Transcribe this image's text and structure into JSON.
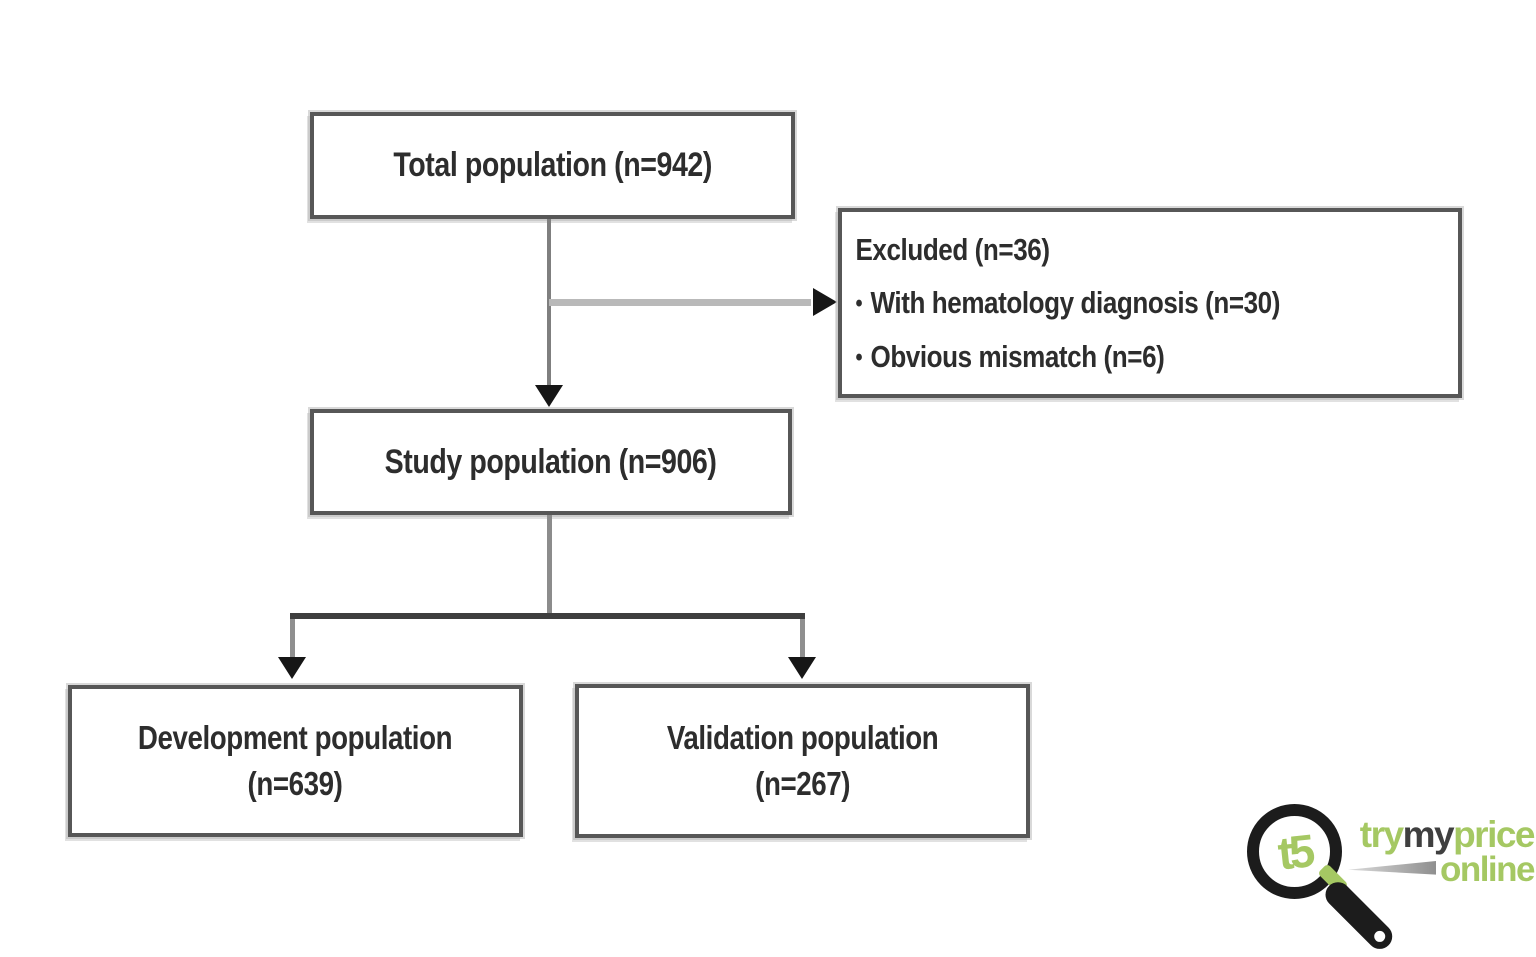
{
  "diagram": {
    "nodes": {
      "total": {
        "label": "Total population (n=942)"
      },
      "excluded": {
        "title": "Excluded (n=36)",
        "bullet": "•",
        "items": [
          "With hematology diagnosis (n=30)",
          "Obvious mismatch (n=6)"
        ]
      },
      "study": {
        "label": "Study population (n=906)"
      },
      "development": {
        "line1": "Development population",
        "line2": "(n=639)"
      },
      "validation": {
        "line1": "Validation population",
        "line2": "(n=267)"
      }
    },
    "colors": {
      "box_border": "#575757",
      "box_halo": "#b9b9b9",
      "text": "#2d2d2d",
      "connector_dark": "#3e3e3e",
      "connector_gray": "#8c8c8c",
      "connector_light": "#b9b9b9",
      "arrowhead": "#161616"
    }
  },
  "watermark": {
    "monogram": "t5",
    "brand_try": "try",
    "brand_my": "my",
    "brand_price": "price",
    "brand_online": "online",
    "colors": {
      "green": "#a5c863",
      "dark": "#3f3f3f",
      "swoosh": "#8f8f8f",
      "black": "#1c1c1c"
    }
  }
}
